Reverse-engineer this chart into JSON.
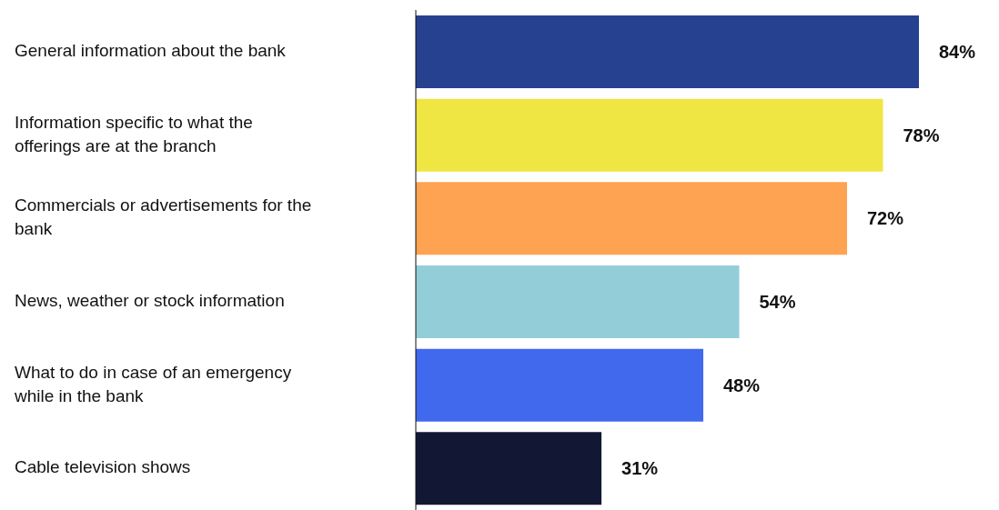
{
  "chart_data": {
    "type": "bar",
    "orientation": "horizontal",
    "categories": [
      "General information about the bank",
      "Information specific to what the offerings are at the branch",
      "Commercials or advertisements for the bank",
      "News, weather or stock information",
      "What to do in case of an emergency while in the bank",
      "Cable television shows"
    ],
    "values": [
      84,
      78,
      72,
      54,
      48,
      31
    ],
    "colors": [
      "#26418f",
      "#f0e643",
      "#fea352",
      "#93ced8",
      "#4169ee",
      "#121834"
    ],
    "value_labels": [
      "84%",
      "78%",
      "72%",
      "54%",
      "48%",
      "31%"
    ],
    "grid": false,
    "legend": false
  }
}
